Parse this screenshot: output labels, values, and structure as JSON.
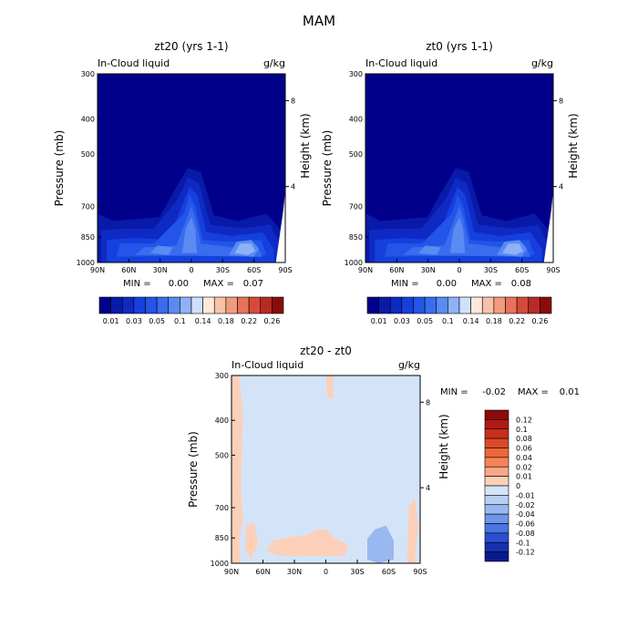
{
  "page_title": "MAM",
  "chart_data": [
    {
      "type": "heatmap",
      "id": "zt20",
      "title": "zt20 (yrs 1-1)",
      "field_label": "In-Cloud liquid",
      "units": "g/kg",
      "ylabel": "Pressure (mb)",
      "ylabel_right": "Height (km)",
      "xlabel": "",
      "x_ticks": [
        "90N",
        "60N",
        "30N",
        "0",
        "30S",
        "60S",
        "90S"
      ],
      "y_ticks": [
        "300",
        "400",
        "500",
        "700",
        "850",
        "1000"
      ],
      "height_ticks": [
        "8",
        "4"
      ],
      "stats": {
        "min_label": "MIN =",
        "min_value": "0.00",
        "max_label": "MAX =",
        "max_value": "0.07"
      },
      "colorbar_labels": [
        "0.01",
        "0.03",
        "0.05",
        "0.1",
        "0.14",
        "0.18",
        "0.22",
        "0.26"
      ],
      "colorbar_levels": [
        0.01,
        0.02,
        0.03,
        0.04,
        0.05,
        0.06,
        0.08,
        0.1,
        0.12,
        0.14,
        0.16,
        0.18,
        0.2,
        0.22,
        0.24,
        0.26
      ],
      "palette": [
        "#00008b",
        "#0a1aa8",
        "#0f2ac4",
        "#1640dd",
        "#2255e8",
        "#3a6cf0",
        "#5b8af2",
        "#8fb1f6",
        "#cfe0fb",
        "#fde8da",
        "#f7c2a9",
        "#f29a7d",
        "#e8725a",
        "#d64a3a",
        "#b82a24",
        "#8b0a0a"
      ],
      "base_color": "#00008b",
      "features": {
        "convective_tower_lat": 0,
        "max_g_kg": 0.07
      }
    },
    {
      "type": "heatmap",
      "id": "zt0",
      "title": "zt0 (yrs 1-1)",
      "field_label": "In-Cloud liquid",
      "units": "g/kg",
      "ylabel": "Pressure (mb)",
      "ylabel_right": "Height (km)",
      "xlabel": "",
      "x_ticks": [
        "90N",
        "60N",
        "30N",
        "0",
        "30S",
        "60S",
        "90S"
      ],
      "y_ticks": [
        "300",
        "400",
        "500",
        "700",
        "850",
        "1000"
      ],
      "height_ticks": [
        "8",
        "4"
      ],
      "stats": {
        "min_label": "MIN =",
        "min_value": "0.00",
        "max_label": "MAX =",
        "max_value": "0.08"
      },
      "colorbar_labels": [
        "0.01",
        "0.03",
        "0.05",
        "0.1",
        "0.14",
        "0.18",
        "0.22",
        "0.26"
      ],
      "colorbar_levels": [
        0.01,
        0.02,
        0.03,
        0.04,
        0.05,
        0.06,
        0.08,
        0.1,
        0.12,
        0.14,
        0.16,
        0.18,
        0.2,
        0.22,
        0.24,
        0.26
      ],
      "palette": [
        "#00008b",
        "#0a1aa8",
        "#0f2ac4",
        "#1640dd",
        "#2255e8",
        "#3a6cf0",
        "#5b8af2",
        "#8fb1f6",
        "#cfe0fb",
        "#fde8da",
        "#f7c2a9",
        "#f29a7d",
        "#e8725a",
        "#d64a3a",
        "#b82a24",
        "#8b0a0a"
      ],
      "base_color": "#00008b",
      "features": {
        "convective_tower_lat": 0,
        "max_g_kg": 0.08
      }
    },
    {
      "type": "heatmap",
      "id": "diff",
      "title": "zt20 - zt0",
      "field_label": "In-Cloud liquid",
      "units": "g/kg",
      "ylabel": "Pressure (mb)",
      "ylabel_right": "Height (km)",
      "xlabel": "",
      "x_ticks": [
        "90N",
        "60N",
        "30N",
        "0",
        "30S",
        "60S",
        "90S"
      ],
      "y_ticks": [
        "300",
        "400",
        "500",
        "700",
        "850",
        "1000"
      ],
      "height_ticks": [
        "8",
        "4"
      ],
      "stats": {
        "min_label": "MIN =",
        "min_value": "-0.02",
        "max_label": "MAX =",
        "max_value": "0.01"
      },
      "colorbar_labels": [
        "0.12",
        "0.1",
        "0.08",
        "0.06",
        "0.04",
        "0.02",
        "0.01",
        "0",
        "-0.01",
        "-0.02",
        "-0.04",
        "-0.06",
        "-0.08",
        "-0.1",
        "-0.12"
      ],
      "colorbar_colors": [
        "#8b0a0a",
        "#b01a14",
        "#c8301c",
        "#dc4a28",
        "#ec6638",
        "#f58458",
        "#f9a888",
        "#fcd0b8",
        "#d4e4f8",
        "#b8cff4",
        "#9ab8f0",
        "#6f95ea",
        "#4a74e0",
        "#2a4fd0",
        "#1530b0",
        "#0a1a8e"
      ],
      "base_color": "#d4e4f8",
      "positive_color": "#fcd0b8",
      "negative_color": "#9ab8f0"
    }
  ]
}
